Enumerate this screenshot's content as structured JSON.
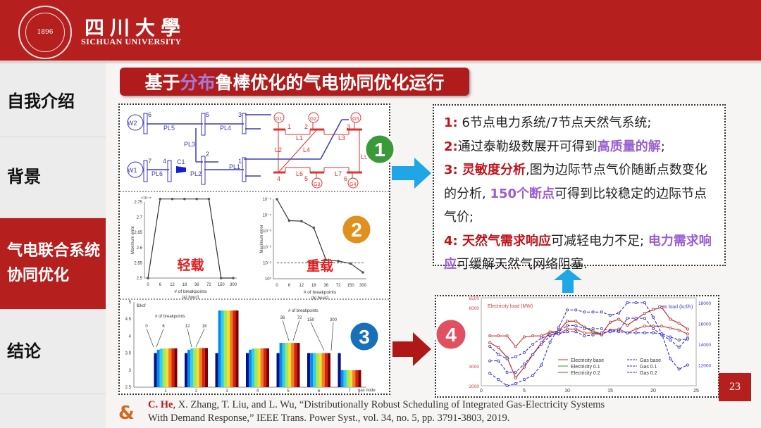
{
  "header": {
    "logo_text": "1896",
    "university_cn": "四川大學",
    "university_en": "SICHUAN UNIVERSITY",
    "color": "#b5201f"
  },
  "sidebar": {
    "items": [
      {
        "label": "自我介绍"
      },
      {
        "label": "背景"
      },
      {
        "label": "气电联合系统协同优化",
        "active": true
      },
      {
        "label": "结论"
      }
    ]
  },
  "title": {
    "prefix": "基于",
    "highlight": "分布",
    "suffix": "鲁棒优化的气电协同优化运行"
  },
  "badges": [
    "1",
    "2",
    "3",
    "4"
  ],
  "diagram": {
    "labels": [
      "W2",
      "W1",
      "6",
      "5",
      "3",
      "7",
      "4",
      "2",
      "1",
      "PL5",
      "PL4",
      "PL3",
      "PL6",
      "C1",
      "PL2",
      "PL1",
      "G1",
      "G2",
      "G5",
      "G3",
      "G4",
      "1",
      "2",
      "3",
      "4",
      "5",
      "6",
      "L1",
      "L2",
      "L3",
      "L4",
      "L5",
      "L6",
      "L7"
    ]
  },
  "notes": {
    "l1_num": "1:",
    "l1_text": " 6节点电力系统/7节点天然气系统;",
    "l2_num": "2:",
    "l2_text": "通过泰勒级数展开可得到",
    "l2_hl": "高质量的解",
    "l2_end": ";",
    "l3_num": "3:",
    "l3_hl": " 灵敏度分析",
    "l3_text": ",图为边际节点气价随断点数变化的分析, ",
    "l3_hl2": "150个断点",
    "l3_end": "可得到比较稳定的边际节点气价;",
    "l4_num": "4:",
    "l4_hl": "  天然气需求响应",
    "l4_text": "可减轻电力不足; ",
    "l4_hl2": "电力需求响应",
    "l4_end": "可缓解天然气网络阻塞."
  },
  "page_number": "23",
  "reference": {
    "author": "C. He",
    "rest_line1": ", X. Zhang, T. Liu, and L. Wu, “Distributionally Robust Scheduling of Integrated Gas-Electricity Systems",
    "line2": "With Demand Response,” IEEE Trans. Power Syst., vol. 34, no. 5, pp. 3791-3803, 2019."
  },
  "chart_data": [
    {
      "type": "line",
      "id": "hour1",
      "caption": "(a) hour1",
      "xlabel": "# of breakpoints",
      "ylabel": "Maximum error",
      "multiplier": "×10⁻¹⁵",
      "annotation": "轻载",
      "categories": [
        "0",
        "6",
        "12",
        "18",
        "36",
        "72",
        "150",
        "300"
      ],
      "values": [
        2.5,
        2.76,
        2.76,
        2.76,
        2.76,
        2.76,
        2.5,
        2.5
      ],
      "yticks": [
        "2.5",
        "2.55",
        "2.6",
        "2.65",
        "2.7",
        "2.75"
      ],
      "ylim": [
        2.5,
        2.76
      ]
    },
    {
      "type": "line",
      "id": "hour2",
      "caption": "(b) hour2",
      "xlabel": "# of breakpoints",
      "ylabel": "Maximum error",
      "annotation": "重载",
      "yscale": "log",
      "categories": [
        "0",
        "6",
        "12",
        "18",
        "36",
        "72",
        "150",
        "300"
      ],
      "values": [
        1,
        0.045,
        0.042,
        0.016,
        0.00015,
        0.00013,
        9e-05,
        2.5e-05
      ],
      "threshold": 0.0001,
      "yticks": [
        "10⁰",
        "10⁻¹",
        "10⁻²",
        "10⁻³",
        "10⁻⁴",
        "10⁻⁵"
      ],
      "ylim": [
        1e-05,
        1
      ]
    },
    {
      "type": "bar",
      "id": "lmp",
      "ylabel": "$/kcf",
      "xlabel": "gas node",
      "legend_title": "# of breakpoints",
      "categories": [
        "1",
        "2",
        "3",
        "4",
        "5",
        "6",
        "7"
      ],
      "yticks": [
        "2.5",
        "3",
        "3.5",
        "4",
        "4.5",
        "5"
      ],
      "ylim": [
        2.5,
        5
      ],
      "series_names": [
        "0",
        "6",
        "12",
        "18",
        "36",
        "72",
        "150",
        "300"
      ],
      "colors": [
        "#00108a",
        "#0030d8",
        "#0a8ae8",
        "#30d0e8",
        "#a0e860",
        "#f0e030",
        "#f08020",
        "#d82010",
        "#800000"
      ],
      "values": [
        [
          3.5,
          3.6,
          3.63,
          3.64,
          3.64,
          3.64,
          3.64,
          3.64
        ],
        [
          3.5,
          3.6,
          3.64,
          3.65,
          3.65,
          3.65,
          3.65,
          3.65
        ],
        [
          3.5,
          4.75,
          4.75,
          4.75,
          4.75,
          4.75,
          4.75,
          4.75
        ],
        [
          3.5,
          3.6,
          3.63,
          3.64,
          3.64,
          3.64,
          3.64,
          3.64
        ],
        [
          3.5,
          3.8,
          3.8,
          3.8,
          3.8,
          3.8,
          3.8,
          3.8
        ],
        [
          3.5,
          3.5,
          3.5,
          3.5,
          3.5,
          3.5,
          3.5,
          3.5
        ],
        [
          3.5,
          3.0,
          3.0,
          3.0,
          3.0,
          3.0,
          3.0,
          3.0
        ]
      ]
    },
    {
      "type": "line",
      "id": "loads",
      "ylabel_left": "Electricity load (MW)",
      "ylabel_right": "Gas load (kcf/h)",
      "xlim": [
        0,
        25
      ],
      "xticks": [
        "0",
        "5",
        "10",
        "15",
        "20",
        "25"
      ],
      "ylim_left": [
        2000,
        6500
      ],
      "yticks_left": [
        "2000",
        "3000",
        "6000",
        "6500"
      ],
      "ylim_right": [
        10000,
        18000
      ],
      "yticks_right": [
        "12000",
        "14000",
        "16000",
        "18000"
      ],
      "x": [
        1,
        2,
        3,
        4,
        5,
        6,
        7,
        8,
        9,
        10,
        11,
        12,
        13,
        14,
        15,
        16,
        17,
        18,
        19,
        20,
        21,
        22,
        23,
        24
      ],
      "series": [
        {
          "name": "Electricity base",
          "axis": "left",
          "color": "#d03030",
          "dash": false,
          "marker": "circle",
          "values": [
            4550,
            4550,
            4550,
            4000,
            4500,
            4550,
            4550,
            4750,
            4650,
            4900,
            4900,
            4700,
            4700,
            4600,
            4850,
            4900,
            4700,
            4900,
            5050,
            5050,
            5050,
            4950,
            4850,
            4650
          ]
        },
        {
          "name": "Electricity 0.1",
          "axis": "left",
          "color": "#30a030",
          "dash": false,
          "marker": "square",
          "values": [
            4200,
            3950,
            3450,
            2400,
            2950,
            3600,
            4200,
            4750,
            4800,
            5300,
            5300,
            5000,
            4800,
            4650,
            5250,
            5400,
            5100,
            5400,
            5700,
            5900,
            6000,
            5400,
            5200,
            4900
          ]
        },
        {
          "name": "Electricity 0.2",
          "axis": "left",
          "color": "#d03030",
          "dash": false,
          "marker": "triangle",
          "values": [
            4200,
            3950,
            3450,
            2400,
            2950,
            3600,
            4200,
            4750,
            4800,
            5300,
            5300,
            5000,
            4750,
            4650,
            5250,
            5400,
            5100,
            5400,
            5700,
            5900,
            6000,
            5400,
            5200,
            4900
          ]
        },
        {
          "name": "Gas base",
          "axis": "right",
          "color": "#3030c8",
          "dash": true,
          "marker": "circle",
          "values": [
            11200,
            10600,
            10000,
            10200,
            10600,
            11000,
            12000,
            14200,
            15600,
            17300,
            17300,
            17100,
            17100,
            17100,
            16800,
            17000,
            18000,
            18000,
            18000,
            16600,
            15000,
            12600,
            11600,
            12000
          ]
        },
        {
          "name": "Gas 0.1",
          "axis": "right",
          "color": "#3030c8",
          "dash": true,
          "marker": "square",
          "values": [
            12400,
            12400,
            11300,
            11300,
            12100,
            13000,
            14000,
            14800,
            15200,
            15800,
            15800,
            15500,
            15500,
            15500,
            15300,
            15300,
            16500,
            16500,
            16500,
            15500,
            14900,
            14400,
            13700,
            14600
          ]
        },
        {
          "name": "Gas 0.2",
          "axis": "right",
          "color": "#3030c8",
          "dash": true,
          "marker": "triangle",
          "values": [
            13800,
            13000,
            12600,
            12800,
            13200,
            14000,
            14600,
            14900,
            15000,
            15200,
            15200,
            14800,
            14900,
            15100,
            15200,
            15200,
            15100,
            15100,
            15100,
            15100,
            15000,
            14700,
            14400,
            14500
          ]
        }
      ]
    }
  ]
}
